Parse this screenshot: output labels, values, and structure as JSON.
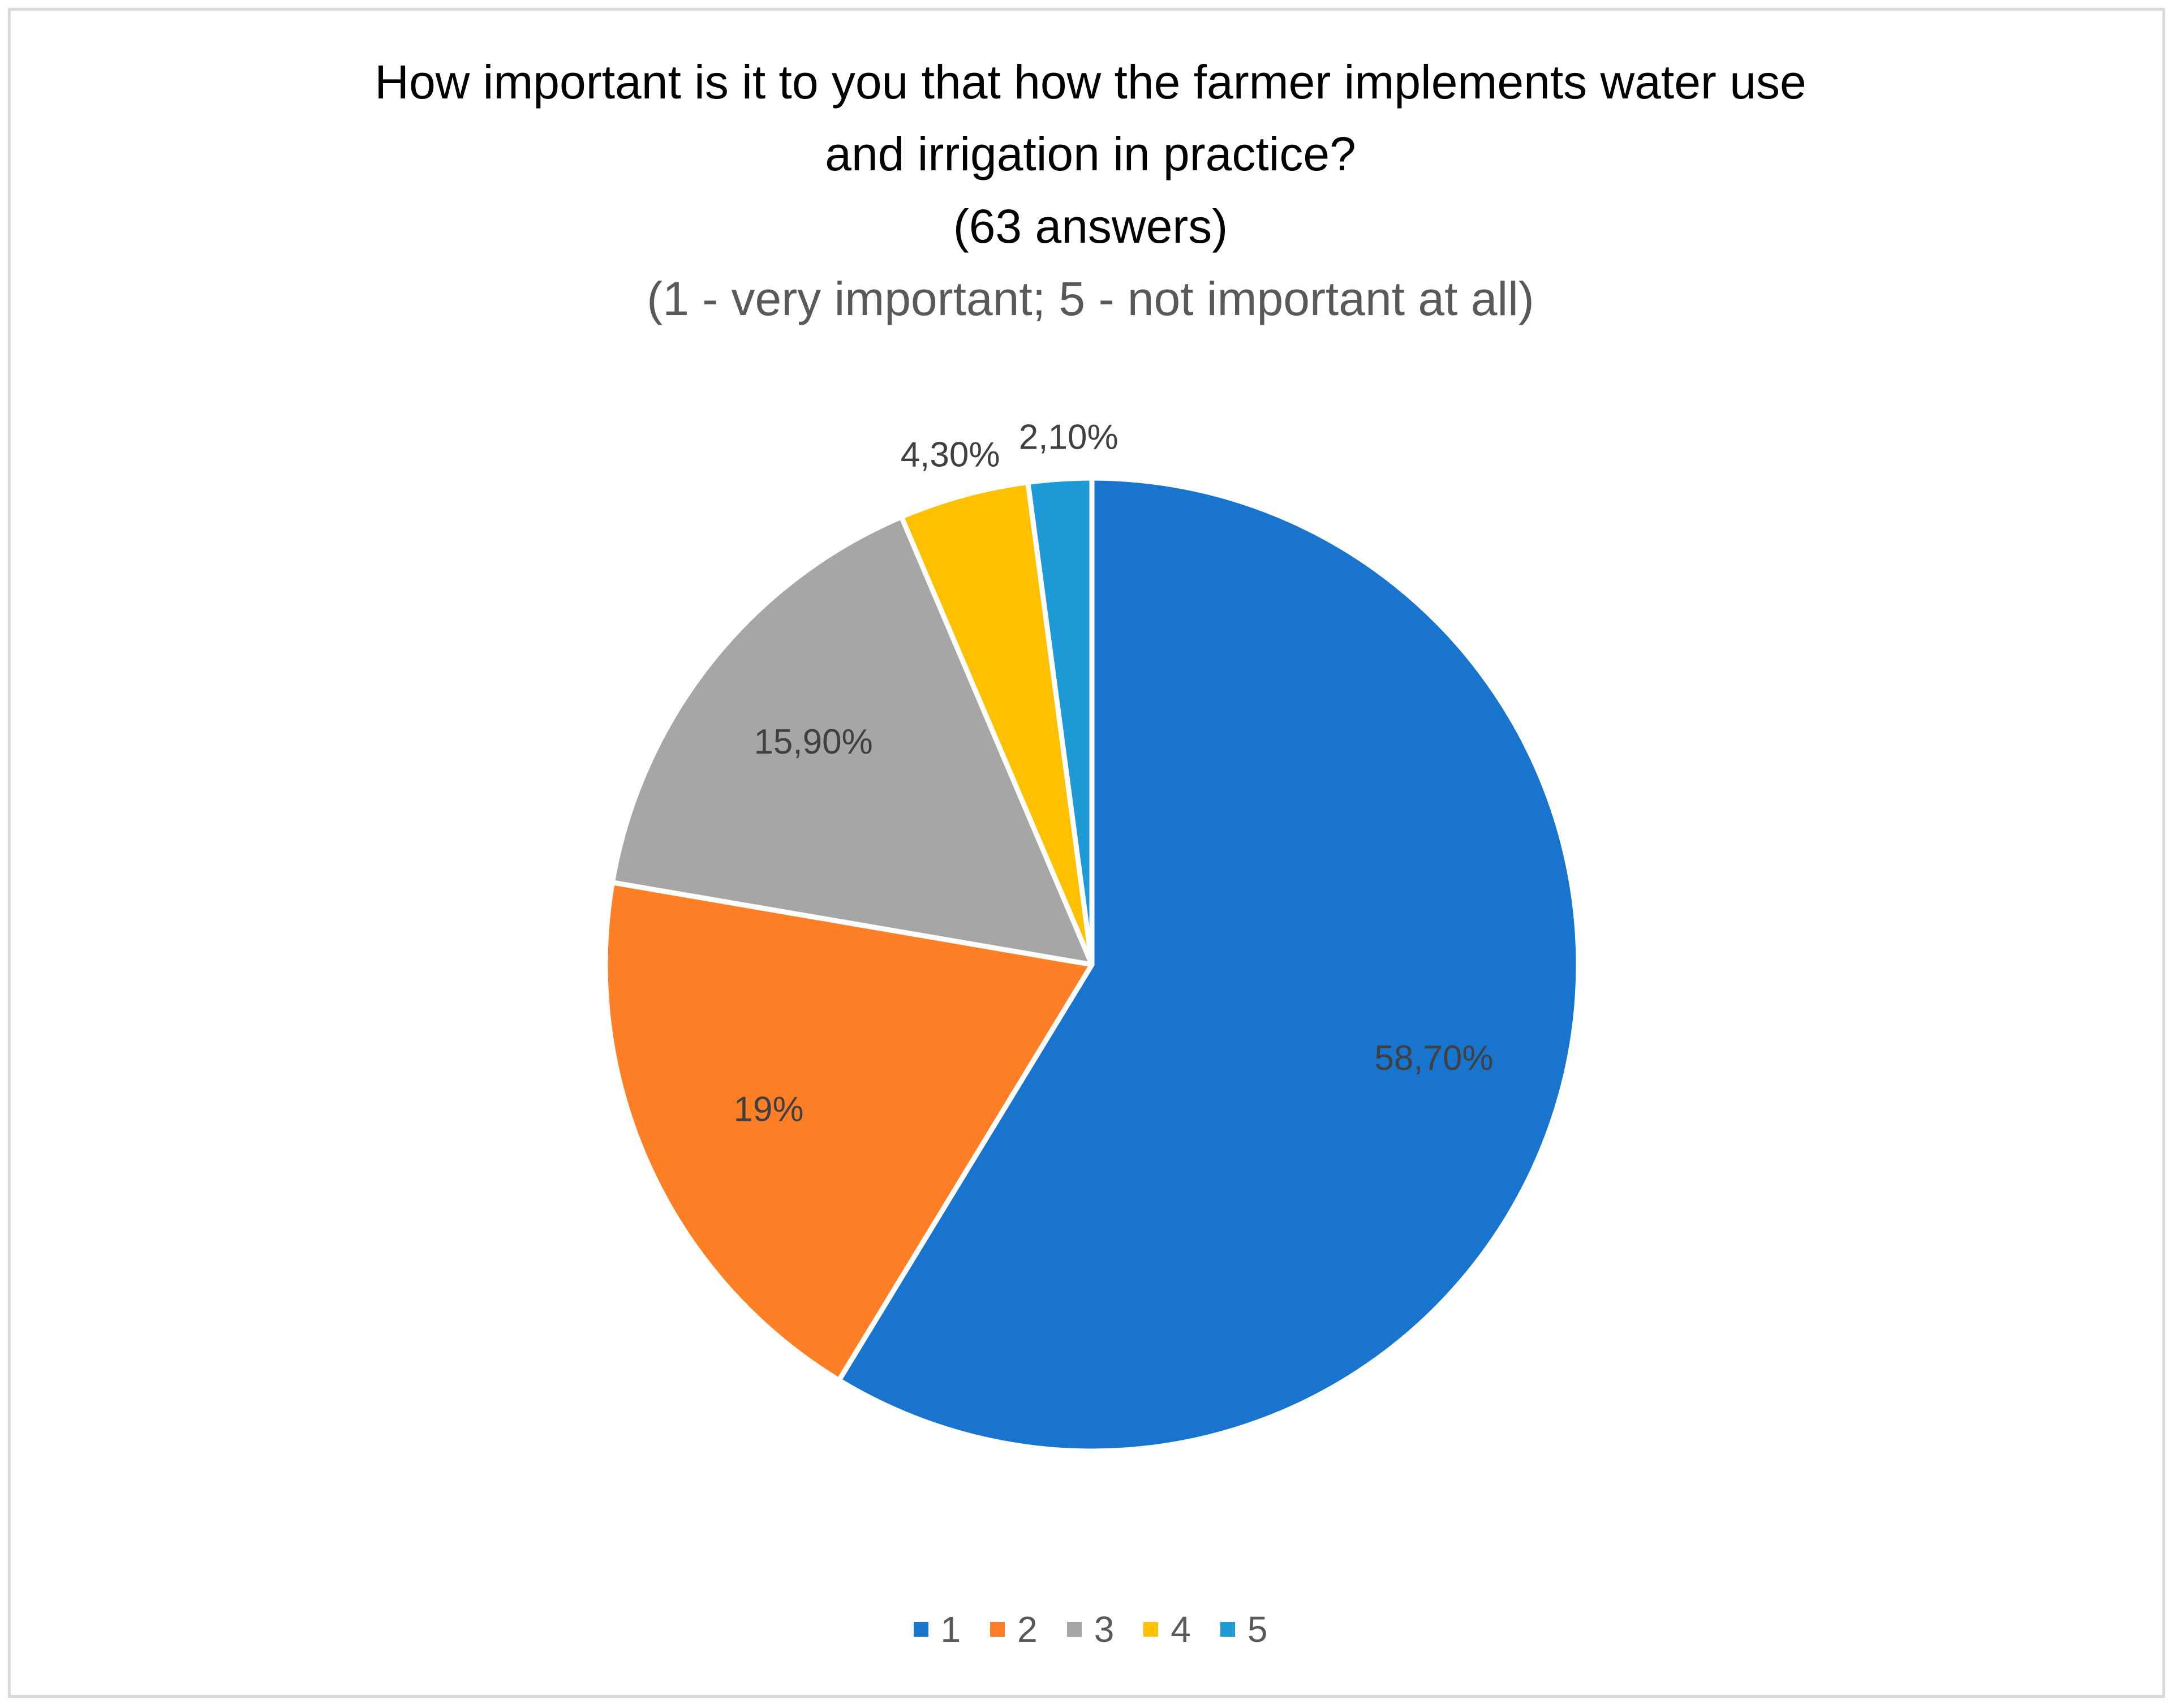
{
  "chart_data": {
    "type": "pie",
    "title_lines": [
      "How important is it to you that how the farmer implements water use",
      "and irrigation in practice?",
      "(63 answers)"
    ],
    "subtitle": "(1 - very important; 5 - not important at all)",
    "categories": [
      "1",
      "2",
      "3",
      "4",
      "5"
    ],
    "values": [
      58.7,
      19,
      15.9,
      4.3,
      2.1
    ],
    "data_labels": [
      "58,70%",
      "19%",
      "15,90%",
      "4,30%",
      "2,10%"
    ],
    "colors": [
      "#1874cd",
      "#ff7f27",
      "#a6a6a6",
      "#ffc000",
      "#1e9bd7"
    ],
    "start": "top, clockwise",
    "legend_position": "bottom"
  }
}
